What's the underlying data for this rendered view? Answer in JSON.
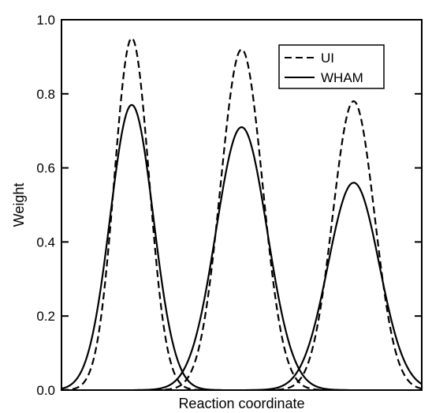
{
  "chart_data": {
    "type": "line",
    "xlabel": "Reaction coordinate",
    "ylabel": "Weight",
    "xlim": [
      0,
      1
    ],
    "ylim": [
      0,
      1.0
    ],
    "yticks": [
      "0.0",
      "0.2",
      "0.4",
      "0.6",
      "0.8",
      "1.0"
    ],
    "grid": false,
    "legend_position": "top-right",
    "series": [
      {
        "name": "UI",
        "style": "dashed",
        "color": "#000000",
        "peaks": [
          {
            "center": 0.195,
            "height": 0.95,
            "width": 0.048
          },
          {
            "center": 0.5,
            "height": 0.92,
            "width": 0.058
          },
          {
            "center": 0.811,
            "height": 0.78,
            "width": 0.058
          }
        ]
      },
      {
        "name": "WHAM",
        "style": "solid",
        "color": "#000000",
        "peaks": [
          {
            "center": 0.195,
            "height": 0.77,
            "width": 0.06
          },
          {
            "center": 0.5,
            "height": 0.71,
            "width": 0.071
          },
          {
            "center": 0.811,
            "height": 0.56,
            "width": 0.071
          }
        ]
      }
    ]
  }
}
